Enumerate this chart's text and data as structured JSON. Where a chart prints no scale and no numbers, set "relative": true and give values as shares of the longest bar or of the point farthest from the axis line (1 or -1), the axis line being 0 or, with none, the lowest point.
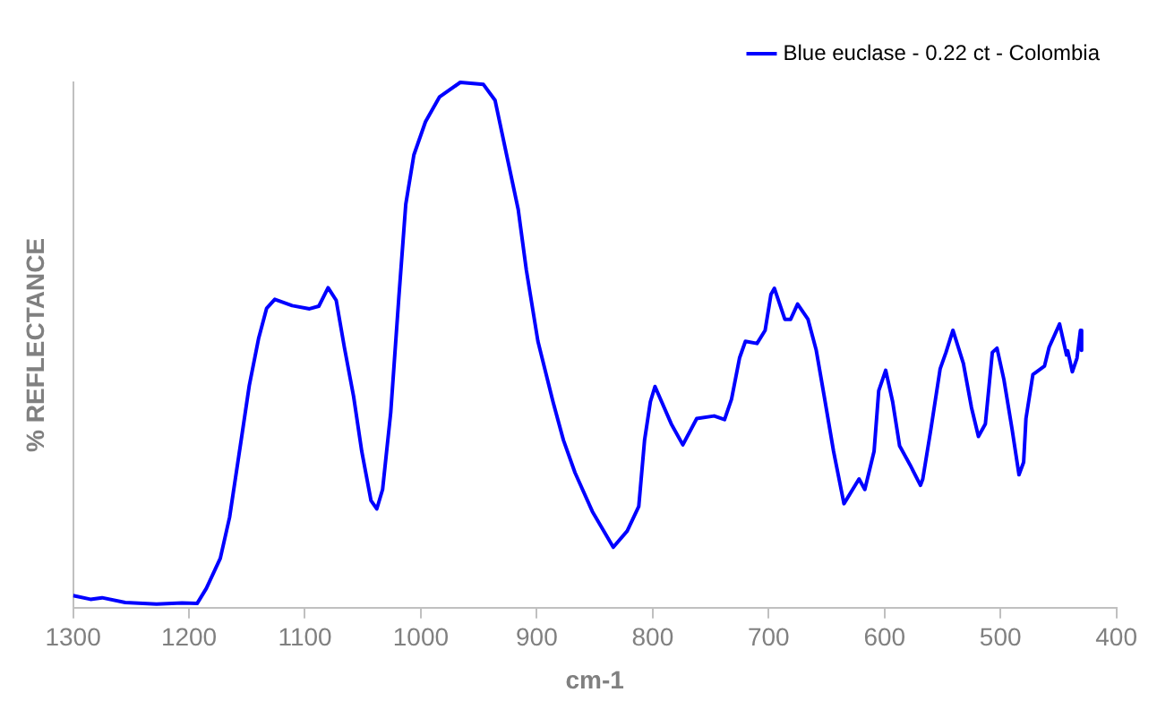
{
  "chart_data": {
    "type": "line",
    "relative": true,
    "xlabel": "cm-1",
    "ylabel": "% REFLECTANCE",
    "x": [
      1300,
      1285,
      1275,
      1255,
      1228,
      1206,
      1193,
      1185,
      1173,
      1165,
      1155,
      1148,
      1140,
      1133,
      1126,
      1111,
      1096,
      1088,
      1080,
      1073,
      1066,
      1058,
      1051,
      1043,
      1038,
      1033,
      1026,
      1019,
      1013,
      1006,
      996,
      984,
      966,
      946,
      936,
      926,
      916,
      909,
      899,
      886,
      877,
      867,
      852,
      834,
      822,
      812,
      807,
      802,
      798,
      784,
      774,
      762,
      747,
      738,
      732,
      725,
      720,
      710,
      703,
      698,
      695,
      686,
      681,
      675,
      666,
      659,
      652,
      644,
      635,
      622,
      617,
      609,
      605,
      599,
      593,
      587,
      578,
      569,
      567,
      560,
      552,
      547,
      541,
      532,
      525,
      519,
      513,
      507,
      503,
      497,
      490,
      484,
      480,
      478,
      472,
      462,
      458,
      449,
      443,
      442,
      438,
      434,
      431,
      430
    ],
    "series": [
      {
        "name": "Blue euclase - 0.22 ct - Colombia",
        "color": "#0000ff",
        "values": [
          0.023,
          0.016,
          0.019,
          0.01,
          0.007,
          0.009,
          0.008,
          0.037,
          0.094,
          0.172,
          0.319,
          0.423,
          0.512,
          0.57,
          0.587,
          0.575,
          0.569,
          0.574,
          0.609,
          0.585,
          0.496,
          0.402,
          0.298,
          0.204,
          0.188,
          0.225,
          0.371,
          0.59,
          0.768,
          0.862,
          0.925,
          0.972,
          1.0,
          0.996,
          0.966,
          0.862,
          0.758,
          0.643,
          0.507,
          0.392,
          0.319,
          0.257,
          0.183,
          0.115,
          0.146,
          0.193,
          0.319,
          0.392,
          0.421,
          0.35,
          0.31,
          0.36,
          0.365,
          0.358,
          0.397,
          0.476,
          0.507,
          0.503,
          0.528,
          0.596,
          0.608,
          0.549,
          0.549,
          0.578,
          0.549,
          0.491,
          0.402,
          0.298,
          0.198,
          0.245,
          0.225,
          0.298,
          0.413,
          0.452,
          0.392,
          0.308,
          0.272,
          0.233,
          0.245,
          0.34,
          0.455,
          0.486,
          0.528,
          0.465,
          0.381,
          0.326,
          0.35,
          0.486,
          0.494,
          0.434,
          0.34,
          0.253,
          0.277,
          0.36,
          0.444,
          0.46,
          0.496,
          0.54,
          0.481,
          0.489,
          0.449,
          0.475,
          0.528,
          0.49
        ]
      }
    ],
    "xlim": [
      1300,
      400
    ],
    "xticks": [
      1300,
      1200,
      1100,
      1000,
      900,
      800,
      700,
      600,
      500,
      400
    ],
    "grid": false,
    "legend": "top right",
    "marker": "none",
    "line_style": "solid"
  }
}
